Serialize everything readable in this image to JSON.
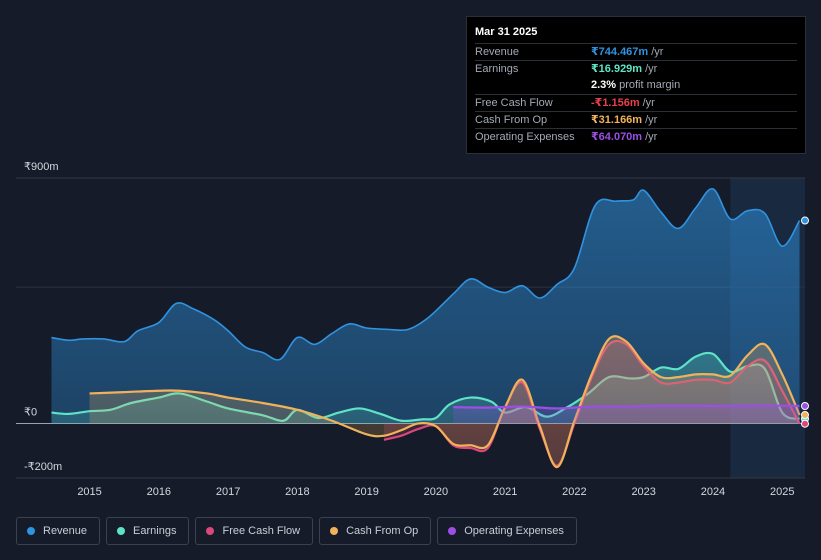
{
  "chart_data": {
    "type": "area",
    "title": "",
    "y_unit_prefix": "₹",
    "ylim": [
      -200,
      900
    ],
    "y_tick_labels": [
      {
        "value": 900,
        "label": "₹900m"
      },
      {
        "value": 0,
        "label": "₹0"
      },
      {
        "value": -200,
        "label": "-₹200m"
      }
    ],
    "xlim": [
      2014.4,
      2025.3
    ],
    "x_ticks": [
      2015,
      2016,
      2017,
      2018,
      2019,
      2020,
      2021,
      2022,
      2023,
      2024,
      2025
    ],
    "x_tick_labels": [
      "2015",
      "2016",
      "2017",
      "2018",
      "2019",
      "2020",
      "2021",
      "2022",
      "2023",
      "2024",
      "2025"
    ],
    "highlight_from": 2024.25,
    "series": [
      {
        "name": "Revenue",
        "color": "#2f93e0",
        "x": [
          2014.45,
          2014.7,
          2014.9,
          2015.2,
          2015.5,
          2015.7,
          2016.0,
          2016.25,
          2016.5,
          2016.8,
          2017.0,
          2017.25,
          2017.5,
          2017.75,
          2018.0,
          2018.25,
          2018.5,
          2018.75,
          2019.0,
          2019.3,
          2019.6,
          2019.9,
          2020.25,
          2020.5,
          2020.75,
          2021.0,
          2021.25,
          2021.5,
          2021.75,
          2022.0,
          2022.3,
          2022.6,
          2022.85,
          2023.0,
          2023.25,
          2023.5,
          2023.75,
          2024.0,
          2024.25,
          2024.5,
          2024.75,
          2025.0,
          2025.25
        ],
        "values": [
          315,
          305,
          310,
          310,
          300,
          340,
          370,
          440,
          420,
          380,
          340,
          280,
          260,
          235,
          315,
          290,
          330,
          365,
          350,
          345,
          345,
          390,
          475,
          530,
          500,
          480,
          505,
          460,
          510,
          570,
          800,
          815,
          820,
          855,
          775,
          715,
          790,
          860,
          750,
          780,
          770,
          650,
          744
        ]
      },
      {
        "name": "Earnings",
        "color": "#5ee3c6",
        "x": [
          2014.45,
          2014.7,
          2015.0,
          2015.3,
          2015.6,
          2016.0,
          2016.3,
          2016.7,
          2017.0,
          2017.5,
          2017.8,
          2018.0,
          2018.3,
          2018.6,
          2018.9,
          2019.2,
          2019.5,
          2019.8,
          2020.0,
          2020.2,
          2020.5,
          2020.8,
          2021.0,
          2021.3,
          2021.6,
          2021.9,
          2022.2,
          2022.5,
          2022.8,
          2023.0,
          2023.25,
          2023.5,
          2023.75,
          2024.0,
          2024.25,
          2024.5,
          2024.75,
          2025.0,
          2025.25
        ],
        "values": [
          40,
          35,
          45,
          50,
          75,
          95,
          110,
          80,
          55,
          30,
          10,
          50,
          20,
          40,
          55,
          35,
          10,
          15,
          20,
          70,
          95,
          80,
          40,
          60,
          25,
          60,
          110,
          170,
          165,
          170,
          205,
          200,
          245,
          255,
          190,
          210,
          200,
          40,
          17
        ]
      },
      {
        "name": "Free Cash Flow",
        "color": "#d9487a",
        "x": [
          2019.25,
          2019.5,
          2019.75,
          2020.0,
          2020.25,
          2020.5,
          2020.75,
          2021.0,
          2021.25,
          2021.5,
          2021.75,
          2022.0,
          2022.25,
          2022.5,
          2022.75,
          2023.0,
          2023.25,
          2023.5,
          2023.75,
          2024.0,
          2024.25,
          2024.5,
          2024.75,
          2025.0,
          2025.25
        ],
        "values": [
          -60,
          -45,
          -20,
          -10,
          -80,
          -90,
          -90,
          60,
          150,
          -20,
          -155,
          0,
          170,
          290,
          290,
          210,
          150,
          150,
          160,
          160,
          150,
          210,
          230,
          120,
          -1
        ]
      },
      {
        "name": "Cash From Op",
        "color": "#f1b25c",
        "x": [
          2015.0,
          2015.5,
          2016.0,
          2016.3,
          2016.7,
          2017.0,
          2017.5,
          2018.0,
          2018.5,
          2019.0,
          2019.25,
          2019.5,
          2019.75,
          2020.0,
          2020.25,
          2020.5,
          2020.75,
          2021.0,
          2021.25,
          2021.5,
          2021.75,
          2022.0,
          2022.25,
          2022.5,
          2022.75,
          2023.0,
          2023.25,
          2023.5,
          2023.75,
          2024.0,
          2024.25,
          2024.5,
          2024.75,
          2025.0,
          2025.25
        ],
        "values": [
          110,
          115,
          120,
          120,
          110,
          95,
          75,
          50,
          10,
          -40,
          -45,
          -25,
          0,
          -10,
          -75,
          -80,
          -80,
          60,
          160,
          -10,
          -160,
          10,
          180,
          310,
          300,
          220,
          170,
          170,
          180,
          180,
          175,
          250,
          290,
          180,
          31
        ]
      },
      {
        "name": "Operating Expenses",
        "color": "#9b4fe5",
        "x": [
          2020.25,
          2020.75,
          2021.25,
          2021.75,
          2022.25,
          2022.75,
          2023.25,
          2023.75,
          2024.25,
          2024.75,
          2025.25
        ],
        "values": [
          60,
          58,
          62,
          55,
          62,
          62,
          65,
          65,
          64,
          66,
          64
        ]
      }
    ]
  },
  "tooltip": {
    "date": "Mar 31 2025",
    "rows": [
      {
        "label": "Revenue",
        "value": "₹744.467m",
        "unit": "/yr",
        "color": "#2f93e0"
      },
      {
        "label": "Earnings",
        "value": "₹16.929m",
        "unit": "/yr",
        "color": "#5ee3c6"
      },
      {
        "label": "",
        "value": "2.3%",
        "unit": "profit margin",
        "color": "#ffffff"
      },
      {
        "label": "Free Cash Flow",
        "value": "-₹1.156m",
        "unit": "/yr",
        "color": "#e8414e"
      },
      {
        "label": "Cash From Op",
        "value": "₹31.166m",
        "unit": "/yr",
        "color": "#f1b25c"
      },
      {
        "label": "Operating Expenses",
        "value": "₹64.070m",
        "unit": "/yr",
        "color": "#9b4fe5"
      }
    ]
  },
  "legend": [
    {
      "label": "Revenue",
      "color": "#2f93e0"
    },
    {
      "label": "Earnings",
      "color": "#5ee3c6"
    },
    {
      "label": "Free Cash Flow",
      "color": "#d9487a"
    },
    {
      "label": "Cash From Op",
      "color": "#f1b25c"
    },
    {
      "label": "Operating Expenses",
      "color": "#9b4fe5"
    }
  ]
}
